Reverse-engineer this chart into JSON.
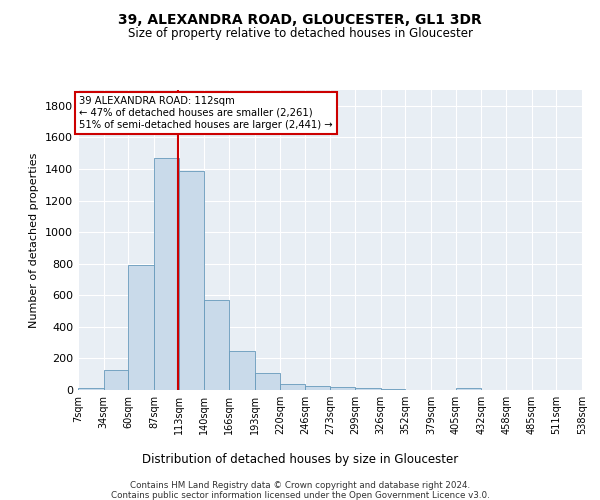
{
  "title": "39, ALEXANDRA ROAD, GLOUCESTER, GL1 3DR",
  "subtitle": "Size of property relative to detached houses in Gloucester",
  "xlabel": "Distribution of detached houses by size in Gloucester",
  "ylabel": "Number of detached properties",
  "bar_color": "#c9daea",
  "bar_edge_color": "#6699bb",
  "background_color": "#e8eef4",
  "annotation_box_color": "#ffffff",
  "annotation_box_edge": "#cc0000",
  "vline_color": "#cc0000",
  "vline_x": 112,
  "annotation_line1": "39 ALEXANDRA ROAD: 112sqm",
  "annotation_line2": "← 47% of detached houses are smaller (2,261)",
  "annotation_line3": "51% of semi-detached houses are larger (2,441) →",
  "footer1": "Contains HM Land Registry data © Crown copyright and database right 2024.",
  "footer2": "Contains public sector information licensed under the Open Government Licence v3.0.",
  "bin_edges": [
    7,
    34,
    60,
    87,
    113,
    140,
    166,
    193,
    220,
    246,
    273,
    299,
    326,
    352,
    379,
    405,
    432,
    458,
    485,
    511,
    538
  ],
  "bin_labels": [
    "7sqm",
    "34sqm",
    "60sqm",
    "87sqm",
    "113sqm",
    "140sqm",
    "166sqm",
    "193sqm",
    "220sqm",
    "246sqm",
    "273sqm",
    "299sqm",
    "326sqm",
    "352sqm",
    "379sqm",
    "405sqm",
    "432sqm",
    "458sqm",
    "485sqm",
    "511sqm",
    "538sqm"
  ],
  "counts": [
    10,
    125,
    790,
    1470,
    1390,
    570,
    250,
    110,
    35,
    25,
    20,
    15,
    5,
    0,
    0,
    10,
    0,
    0,
    0,
    0
  ],
  "ylim": [
    0,
    1900
  ],
  "yticks": [
    0,
    200,
    400,
    600,
    800,
    1000,
    1200,
    1400,
    1600,
    1800
  ]
}
